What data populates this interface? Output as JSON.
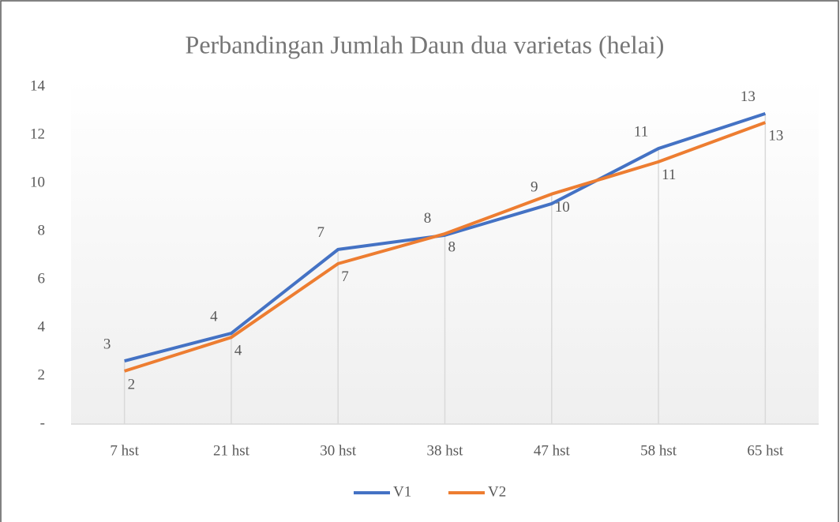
{
  "chart_data": {
    "type": "line",
    "title": "Perbandingan Jumlah Daun dua varietas (helai)",
    "categories": [
      "7 hst",
      "21 hst",
      "30 hst",
      "38 hst",
      "47 hst",
      "58 hst",
      "65 hst"
    ],
    "series": [
      {
        "name": "V1",
        "color": "#4472c4",
        "values": [
          2.62,
          3.77,
          7.25,
          7.84,
          9.15,
          11.44,
          12.89
        ],
        "value_labels": [
          "3",
          "4",
          "7",
          "8",
          "9",
          "11",
          "13"
        ]
      },
      {
        "name": "V2",
        "color": "#ed7d31",
        "values": [
          2.2,
          3.6,
          6.66,
          7.9,
          9.55,
          10.89,
          12.52
        ],
        "value_labels": [
          "2",
          "4",
          "7",
          "8",
          "10",
          "11",
          "13"
        ]
      }
    ],
    "ylim": [
      0,
      14
    ],
    "yticks": [
      {
        "value": 0,
        "label": "-"
      },
      2,
      4,
      6,
      8,
      10,
      12,
      14
    ],
    "legend": "bottom"
  }
}
